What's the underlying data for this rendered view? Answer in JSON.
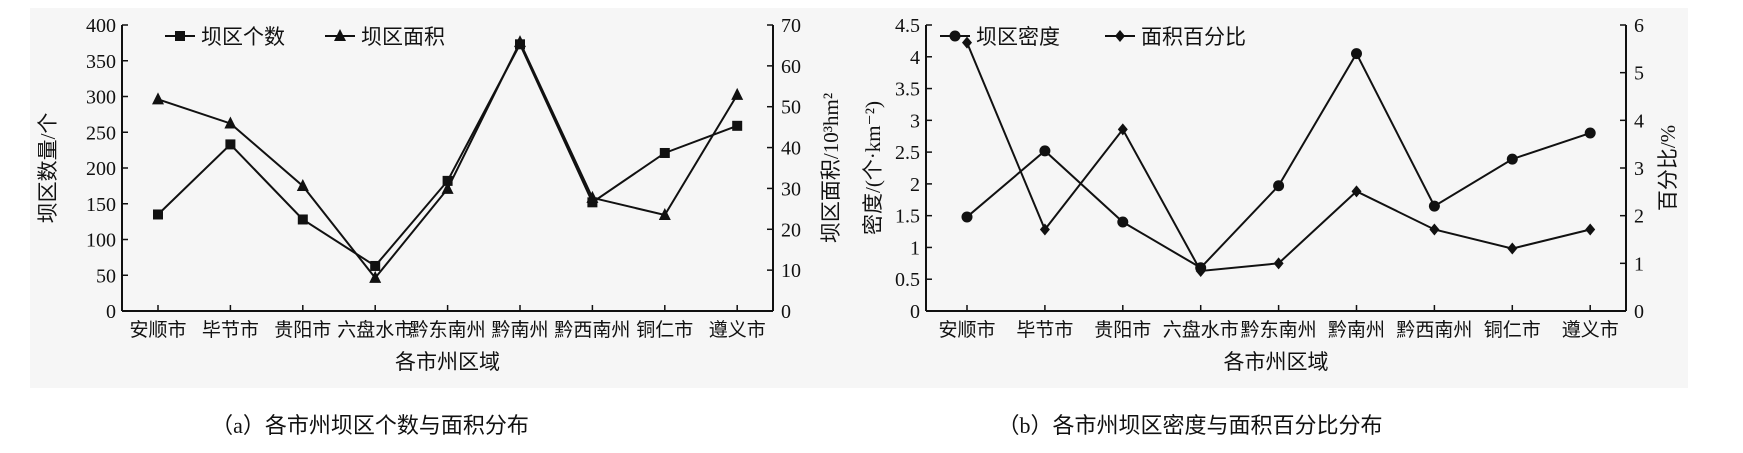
{
  "chart_data": [
    {
      "type": "line",
      "caption": "（a）各市州坝区个数与面积分布",
      "xlabel": "各市州区域",
      "ylabel": "坝区数量/个",
      "ylabel_right": "坝区面积/10³hm²",
      "categories": [
        "安顺市",
        "毕节市",
        "贵阳市",
        "六盘水市",
        "黔东南州",
        "黔南州",
        "黔西南州",
        "铜仁市",
        "遵义市"
      ],
      "ylim": [
        0,
        400
      ],
      "yticks": [
        "0",
        "50",
        "100",
        "150",
        "200",
        "250",
        "300",
        "350",
        "400"
      ],
      "ylim_right": [
        0,
        70
      ],
      "yticks_right": [
        "0",
        "10",
        "20",
        "30",
        "40",
        "50",
        "60",
        "70"
      ],
      "legend_position": "top-left",
      "series": [
        {
          "name": "坝区个数",
          "axis": "left",
          "marker": "square",
          "values": [
            135,
            233,
            128,
            63,
            182,
            373,
            152,
            221,
            259
          ]
        },
        {
          "name": "坝区面积",
          "axis": "right",
          "marker": "triangle",
          "values": [
            51.8,
            45.9,
            30.6,
            8.1,
            29.9,
            65.8,
            27.7,
            23.5,
            52.9
          ]
        }
      ]
    },
    {
      "type": "line",
      "caption": "（b）各市州坝区密度与面积百分比分布",
      "xlabel": "各市州区域",
      "ylabel": "密度/(个·km⁻²)",
      "ylabel_right": "百分比/%",
      "categories": [
        "安顺市",
        "毕节市",
        "贵阳市",
        "六盘水市",
        "黔东南州",
        "黔南州",
        "黔西南州",
        "铜仁市",
        "遵义市"
      ],
      "ylim": [
        0,
        4.5
      ],
      "yticks": [
        "0",
        "0.5",
        "1",
        "1.5",
        "2",
        "2.5",
        "3",
        "3.5",
        "4",
        "4.5"
      ],
      "ylim_right": [
        0,
        6
      ],
      "yticks_right": [
        "0",
        "1",
        "2",
        "3",
        "4",
        "5",
        "6"
      ],
      "legend_position": "top-left",
      "series": [
        {
          "name": "坝区密度",
          "axis": "left",
          "marker": "circle",
          "values": [
            1.48,
            2.52,
            1.4,
            0.68,
            1.97,
            4.05,
            1.65,
            2.39,
            2.8
          ]
        },
        {
          "name": "面积百分比",
          "axis": "right",
          "marker": "diamond",
          "values": [
            5.63,
            1.71,
            3.81,
            0.84,
            1.0,
            2.51,
            1.71,
            1.31,
            1.71
          ]
        }
      ]
    }
  ]
}
